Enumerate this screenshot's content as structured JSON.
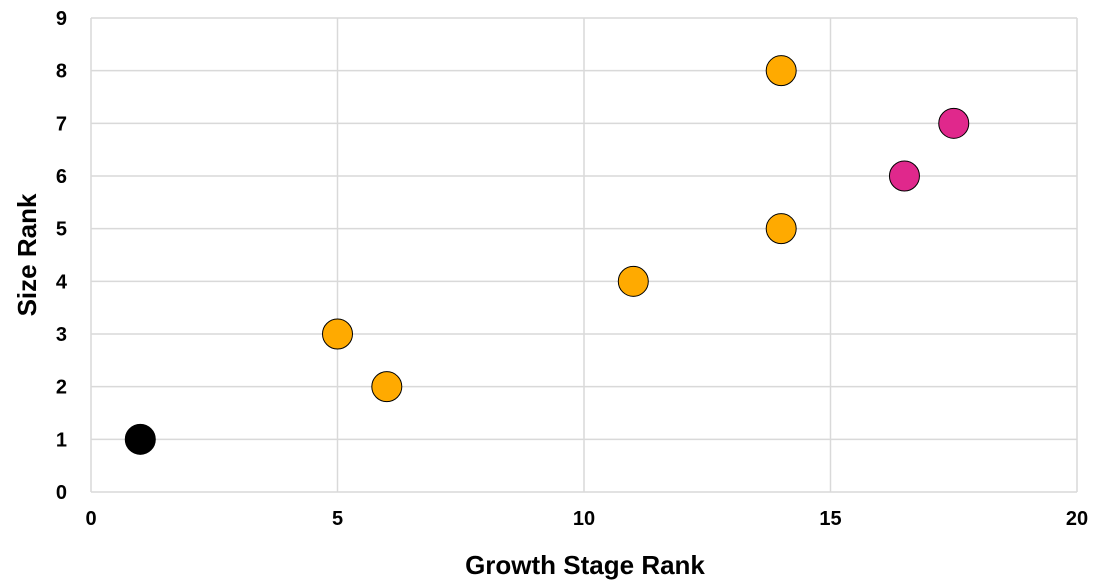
{
  "chart_data": {
    "type": "scatter",
    "title": "",
    "xlabel": "Growth Stage Rank",
    "ylabel": "Size Rank",
    "xlim": [
      0,
      20
    ],
    "ylim": [
      0,
      9
    ],
    "x_ticks": [
      0,
      5,
      10,
      15,
      20
    ],
    "y_ticks": [
      0,
      1,
      2,
      3,
      4,
      5,
      6,
      7,
      8,
      9
    ],
    "grid": true,
    "legend": "none",
    "series": [
      {
        "color": "#000000",
        "points": [
          {
            "x": 1,
            "y": 1
          }
        ]
      },
      {
        "color": "#FFAA00",
        "points": [
          {
            "x": 5,
            "y": 3
          },
          {
            "x": 6,
            "y": 2
          },
          {
            "x": 11,
            "y": 4
          },
          {
            "x": 14,
            "y": 5
          },
          {
            "x": 14,
            "y": 8
          }
        ]
      },
      {
        "color": "#E0288C",
        "points": [
          {
            "x": 16.5,
            "y": 6
          },
          {
            "x": 17.5,
            "y": 7
          }
        ]
      }
    ]
  }
}
